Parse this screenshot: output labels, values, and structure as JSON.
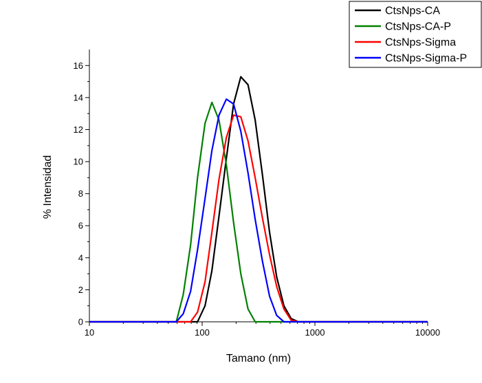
{
  "chart_data": {
    "type": "line",
    "xlabel": "Tamano (nm)",
    "ylabel": "% Intensidad",
    "xscale": "log",
    "xlim": [
      10,
      10000
    ],
    "ylim": [
      0,
      17
    ],
    "x_tick_labels": [
      "10",
      "100",
      "1000",
      "10000"
    ],
    "y_tick_labels": [
      "0",
      "2",
      "4",
      "6",
      "8",
      "10",
      "12",
      "14",
      "16"
    ],
    "legend_position": "top-right",
    "grid": false,
    "series": [
      {
        "name": "CtsNps-CA",
        "color": "#000000",
        "x": [
          10,
          91,
          106,
          122,
          141,
          164,
          190,
          220,
          255,
          295,
          342,
          396,
          458,
          531,
          615,
          712,
          10000
        ],
        "y": [
          0,
          0,
          1.0,
          3.2,
          6.6,
          10.2,
          13.6,
          15.3,
          14.8,
          12.6,
          9.2,
          5.6,
          2.8,
          1.0,
          0.2,
          0,
          0
        ]
      },
      {
        "name": "CtsNps-CA-P",
        "color": "#008000",
        "x": [
          10,
          59,
          68,
          79,
          91,
          106,
          122,
          141,
          164,
          190,
          220,
          255,
          295,
          10000
        ],
        "y": [
          0,
          0,
          1.7,
          4.8,
          9.0,
          12.4,
          13.7,
          12.6,
          9.8,
          6.2,
          3.0,
          0.8,
          0,
          0
        ]
      },
      {
        "name": "CtsNps-Sigma",
        "color": "#ff0000",
        "x": [
          10,
          79,
          91,
          106,
          122,
          141,
          164,
          190,
          220,
          255,
          295,
          342,
          396,
          458,
          531,
          615,
          712,
          10000
        ],
        "y": [
          0,
          0,
          0.6,
          2.5,
          5.6,
          8.9,
          11.5,
          12.9,
          12.8,
          11.3,
          9.0,
          6.5,
          4.2,
          2.2,
          0.8,
          0.1,
          0,
          0
        ]
      },
      {
        "name": "CtsNps-Sigma-P",
        "color": "#0000ff",
        "x": [
          10,
          59,
          68,
          79,
          91,
          106,
          122,
          141,
          164,
          190,
          220,
          255,
          295,
          342,
          396,
          458,
          531,
          10000
        ],
        "y": [
          0,
          0,
          0.5,
          1.9,
          4.5,
          7.7,
          10.7,
          12.9,
          13.9,
          13.6,
          11.9,
          9.3,
          6.4,
          3.8,
          1.6,
          0.4,
          0,
          0
        ]
      }
    ]
  }
}
